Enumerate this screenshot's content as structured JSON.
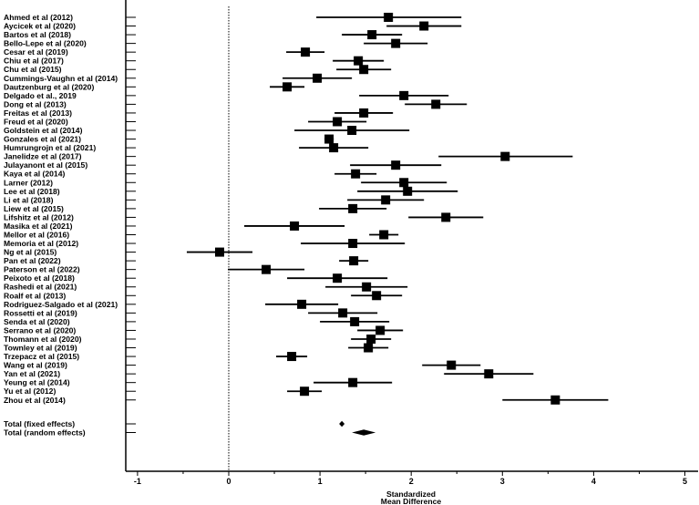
{
  "chart_data": {
    "type": "forest",
    "xlabel": [
      "Standardized",
      "Mean Difference"
    ],
    "xlim": [
      -1.3,
      5.15
    ],
    "xticks": [
      -1,
      0,
      1,
      2,
      3,
      4,
      5
    ],
    "reference_line": 0,
    "studies": [
      {
        "label": "Ahmed et al (2012)",
        "smd": 1.75,
        "ci": [
          0.96,
          2.55
        ]
      },
      {
        "label": "Aycicek et al (2020)",
        "smd": 2.14,
        "ci": [
          1.73,
          2.55
        ]
      },
      {
        "label": "Bartos et al (2018)",
        "smd": 1.57,
        "ci": [
          1.24,
          1.9
        ]
      },
      {
        "label": "Bello-Lepe et al (2020)",
        "smd": 1.83,
        "ci": [
          1.48,
          2.18
        ]
      },
      {
        "label": "Cesar et al (2019)",
        "smd": 0.84,
        "ci": [
          0.63,
          1.05
        ]
      },
      {
        "label": "Chiu et al (2017)",
        "smd": 1.42,
        "ci": [
          1.14,
          1.7
        ]
      },
      {
        "label": "Chu et al (2015)",
        "smd": 1.48,
        "ci": [
          1.18,
          1.78
        ]
      },
      {
        "label": "Cummings-Vaughn et al (2014)",
        "smd": 0.97,
        "ci": [
          0.59,
          1.35
        ]
      },
      {
        "label": "Dautzenburg et al (2020)",
        "smd": 0.64,
        "ci": [
          0.45,
          0.83
        ]
      },
      {
        "label": "Delgado et al., 2019",
        "smd": 1.92,
        "ci": [
          1.43,
          2.41
        ]
      },
      {
        "label": "Dong et al (2013)",
        "smd": 2.27,
        "ci": [
          1.93,
          2.61
        ]
      },
      {
        "label": "Freitas et al (2013)",
        "smd": 1.48,
        "ci": [
          1.16,
          1.8
        ]
      },
      {
        "label": "Freud et al (2020)",
        "smd": 1.19,
        "ci": [
          0.87,
          1.51
        ]
      },
      {
        "label": "Goldstein et al (2014)",
        "smd": 1.35,
        "ci": [
          0.72,
          1.98
        ]
      },
      {
        "label": "Gonzales et al (2021)",
        "smd": 1.1,
        "ci": [
          1.05,
          1.15
        ]
      },
      {
        "label": "Humrungrojn et al (2021)",
        "smd": 1.15,
        "ci": [
          0.77,
          1.53
        ]
      },
      {
        "label": "Janelidze et al (2017)",
        "smd": 3.03,
        "ci": [
          2.3,
          3.77
        ]
      },
      {
        "label": "Julayanont et al (2015)",
        "smd": 1.83,
        "ci": [
          1.33,
          2.33
        ]
      },
      {
        "label": "Kaya et al (2014)",
        "smd": 1.39,
        "ci": [
          1.16,
          1.62
        ]
      },
      {
        "label": "Larner (2012)",
        "smd": 1.92,
        "ci": [
          1.45,
          2.39
        ]
      },
      {
        "label": "Lee et al (2018)",
        "smd": 1.96,
        "ci": [
          1.41,
          2.51
        ]
      },
      {
        "label": "Li et al (2018)",
        "smd": 1.72,
        "ci": [
          1.3,
          2.14
        ]
      },
      {
        "label": "Liew et al (2015)",
        "smd": 1.36,
        "ci": [
          0.99,
          1.73
        ]
      },
      {
        "label": "Lifshitz et al (2012)",
        "smd": 2.38,
        "ci": [
          1.97,
          2.79
        ]
      },
      {
        "label": "Masika et al (2021)",
        "smd": 0.72,
        "ci": [
          0.17,
          1.27
        ]
      },
      {
        "label": "Mellor et al (2016)",
        "smd": 1.7,
        "ci": [
          1.54,
          1.86
        ]
      },
      {
        "label": "Memoria et al (2012)",
        "smd": 1.36,
        "ci": [
          0.79,
          1.93
        ]
      },
      {
        "label": "Ng et al (2015)",
        "smd": -0.1,
        "ci": [
          -0.46,
          0.26
        ]
      },
      {
        "label": "Pan et al (2022)",
        "smd": 1.37,
        "ci": [
          1.21,
          1.53
        ]
      },
      {
        "label": "Paterson et al (2022)",
        "smd": 0.41,
        "ci": [
          -0.01,
          0.83
        ]
      },
      {
        "label": "Peixoto et al (2018)",
        "smd": 1.19,
        "ci": [
          0.64,
          1.74
        ]
      },
      {
        "label": "Rashedi et al (2021)",
        "smd": 1.51,
        "ci": [
          1.06,
          1.96
        ]
      },
      {
        "label": "Roalf et al (2013)",
        "smd": 1.62,
        "ci": [
          1.34,
          1.9
        ]
      },
      {
        "label": "Rodriguez-Salgado et al (2021)",
        "smd": 0.8,
        "ci": [
          0.4,
          1.2
        ]
      },
      {
        "label": "Rossetti et al (2019)",
        "smd": 1.25,
        "ci": [
          0.87,
          1.63
        ]
      },
      {
        "label": "Senda et al (2020)",
        "smd": 1.38,
        "ci": [
          1.0,
          1.76
        ]
      },
      {
        "label": "Serrano et al (2020)",
        "smd": 1.66,
        "ci": [
          1.41,
          1.91
        ]
      },
      {
        "label": "Thomann et al (2020)",
        "smd": 1.56,
        "ci": [
          1.34,
          1.78
        ]
      },
      {
        "label": "Townley et al (2019)",
        "smd": 1.53,
        "ci": [
          1.31,
          1.75
        ]
      },
      {
        "label": "Trzepacz et al (2015)",
        "smd": 0.69,
        "ci": [
          0.52,
          0.86
        ]
      },
      {
        "label": "Wang et al (2019)",
        "smd": 2.44,
        "ci": [
          2.12,
          2.76
        ]
      },
      {
        "label": "Yan et al (2021)",
        "smd": 2.85,
        "ci": [
          2.36,
          3.34
        ]
      },
      {
        "label": "Yeung et al (2014)",
        "smd": 1.36,
        "ci": [
          0.93,
          1.79
        ]
      },
      {
        "label": "Yu et al (2012)",
        "smd": 0.83,
        "ci": [
          0.64,
          1.02
        ]
      },
      {
        "label": "Zhou et al (2014)",
        "smd": 3.58,
        "ci": [
          3.0,
          4.16
        ]
      }
    ],
    "pooled": [
      {
        "label": "Total (fixed effects)",
        "smd": 1.24,
        "ci": [
          1.21,
          1.27
        ]
      },
      {
        "label": "Total (random effects)",
        "smd": 1.48,
        "ci": [
          1.35,
          1.61
        ]
      }
    ]
  }
}
